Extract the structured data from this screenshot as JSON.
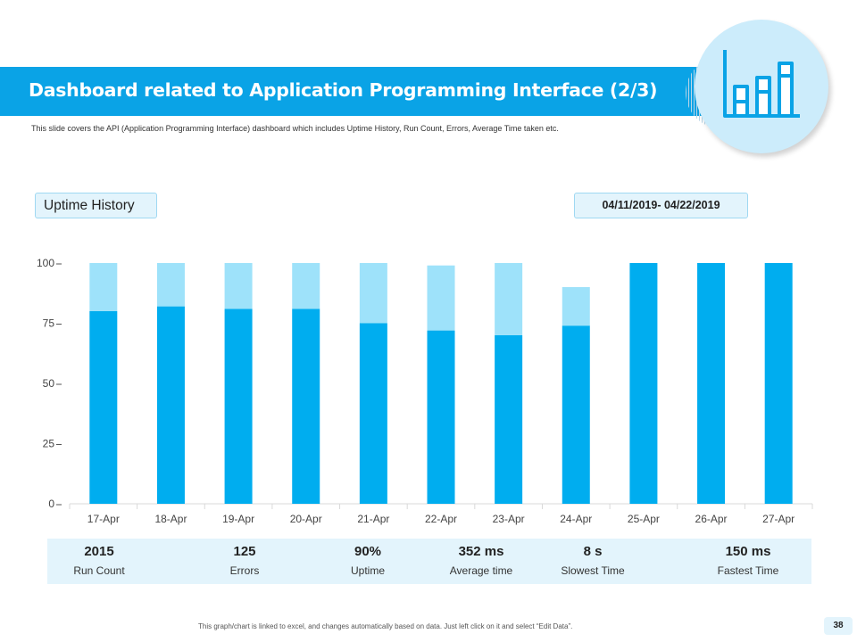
{
  "header": {
    "title": "Dashboard related to Application Programming Interface (2/3)",
    "subtitle": "This slide covers the API (Application Programming Interface) dashboard which includes Uptime History, Run Count, Errors, Average Time taken etc."
  },
  "icon": {
    "name": "bar-chart-icon"
  },
  "panel": {
    "label": "Uptime History",
    "date_range": "04/11/2019- 04/22/2019"
  },
  "chart_data": {
    "type": "bar",
    "stacked": true,
    "categories": [
      "17-Apr",
      "18-Apr",
      "19-Apr",
      "20-Apr",
      "21-Apr",
      "22-Apr",
      "23-Apr",
      "24-Apr",
      "25-Apr",
      "26-Apr",
      "27-Apr"
    ],
    "series": [
      {
        "values": [
          80,
          82,
          81,
          81,
          75,
          72,
          70,
          74,
          100,
          100,
          100
        ],
        "color": "#00ADEF"
      },
      {
        "values": [
          20,
          18,
          19,
          19,
          25,
          27,
          30,
          16,
          0,
          0,
          0
        ],
        "color": "#9EE2FA"
      }
    ],
    "yticks": [
      0,
      25,
      50,
      75,
      100
    ],
    "ylim": [
      0,
      100
    ],
    "grid": false
  },
  "stats": [
    {
      "value": "2015",
      "label": "Run Count"
    },
    {
      "value": "125",
      "label": "Errors"
    },
    {
      "value": "90%",
      "label": "Uptime"
    },
    {
      "value": "352 ms",
      "label": "Average time"
    },
    {
      "value": "8 s",
      "label": "Slowest Time"
    },
    {
      "value": "150 ms",
      "label": "Fastest Time"
    }
  ],
  "footer": {
    "note": "This graph/chart is linked to excel, and changes automatically based on data. Just left click on it and select “Edit Data”.",
    "page_number": "38"
  }
}
